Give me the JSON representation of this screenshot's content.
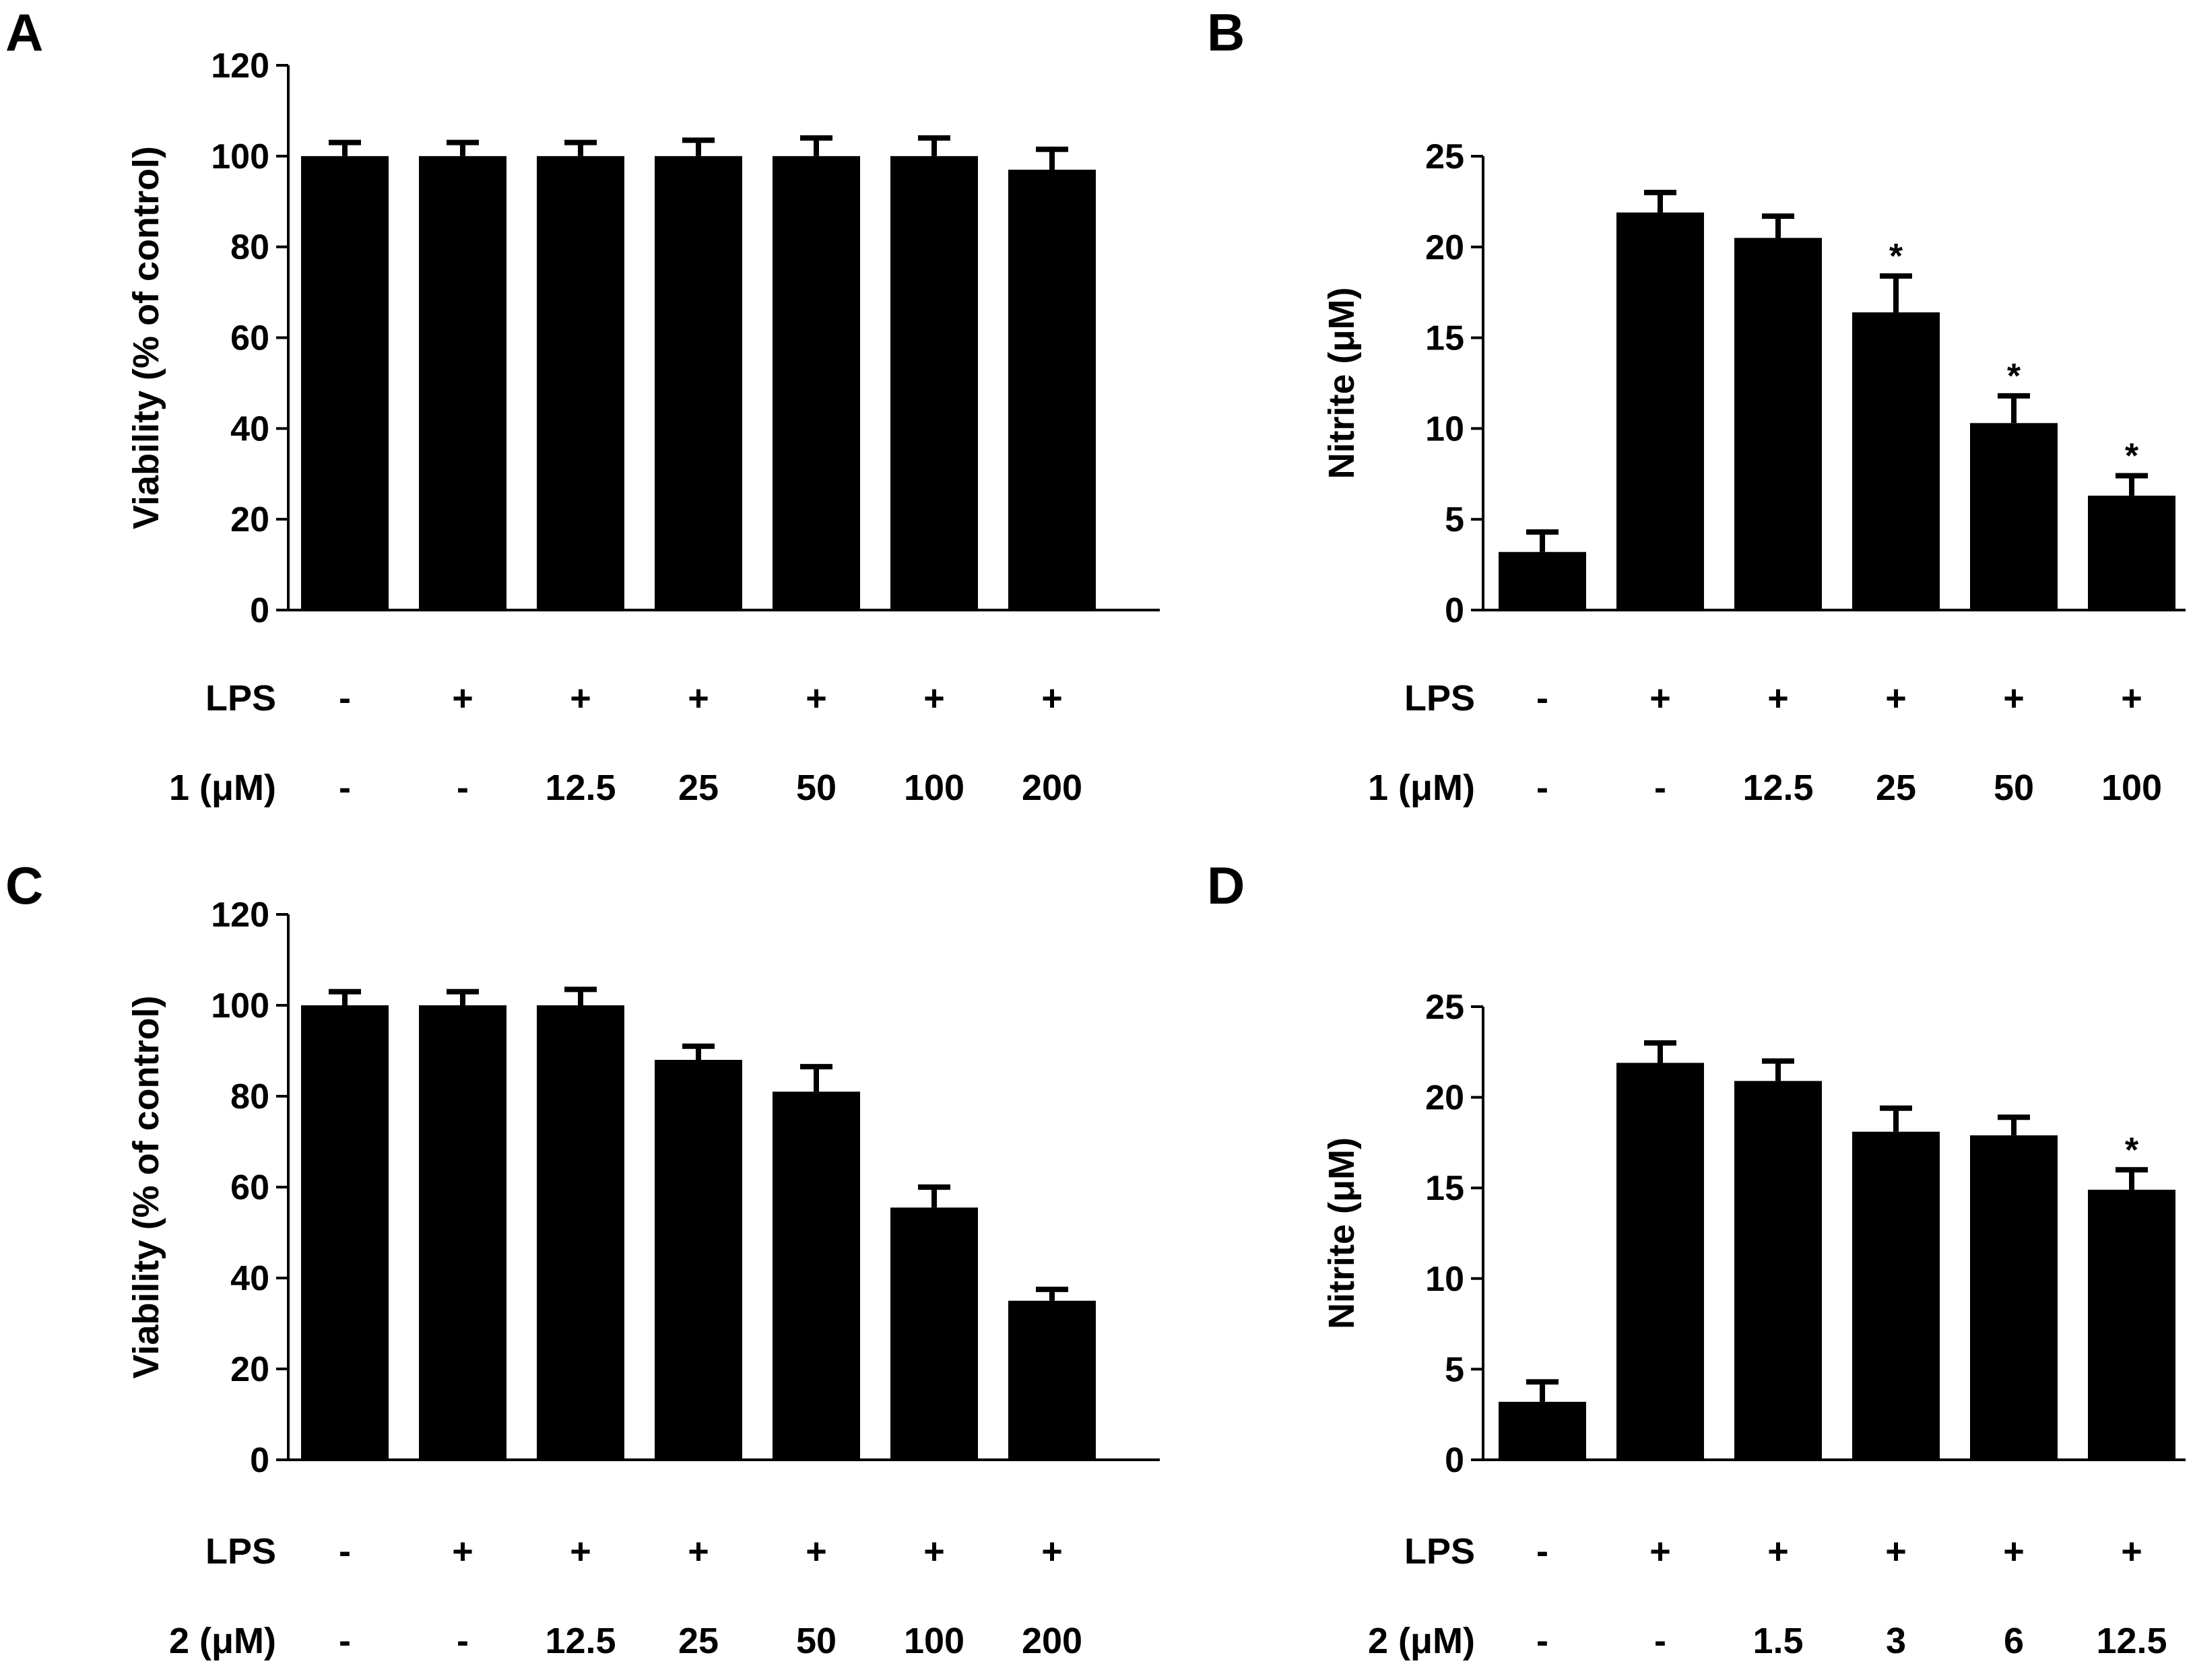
{
  "chart_data": [
    {
      "panel": "A",
      "type": "bar",
      "ylabel": "Viability (% of control)",
      "ylim": [
        0,
        120
      ],
      "yticks": [
        0,
        20,
        40,
        60,
        80,
        100,
        120
      ],
      "condition_rows": [
        {
          "label": "LPS",
          "values": [
            "-",
            "+",
            "+",
            "+",
            "+",
            "+",
            "+"
          ]
        },
        {
          "label": "1 (μM)",
          "values": [
            "-",
            "-",
            "12.5",
            "25",
            "50",
            "100",
            "200"
          ]
        }
      ],
      "values": [
        100,
        100,
        100,
        100,
        100,
        100,
        97
      ],
      "errors": [
        3,
        3,
        3,
        3.5,
        4,
        4,
        4.5
      ],
      "annotations": [
        "",
        "",
        "",
        "",
        "",
        "",
        ""
      ]
    },
    {
      "panel": "B",
      "type": "bar",
      "ylabel": "Nitrite (μM)",
      "ylim": [
        0,
        25
      ],
      "yticks": [
        0,
        5,
        10,
        15,
        20,
        25
      ],
      "condition_rows": [
        {
          "label": "LPS",
          "values": [
            "-",
            "+",
            "+",
            "+",
            "+",
            "+"
          ]
        },
        {
          "label": "1 (μM)",
          "values": [
            "-",
            "-",
            "12.5",
            "25",
            "50",
            "100"
          ]
        }
      ],
      "values": [
        3.2,
        21.9,
        20.5,
        16.4,
        10.3,
        6.3
      ],
      "errors": [
        1.1,
        1.1,
        1.2,
        2.0,
        1.5,
        1.1
      ],
      "annotations": [
        "",
        "",
        "",
        "*",
        "*",
        "*"
      ]
    },
    {
      "panel": "C",
      "type": "bar",
      "ylabel": "Viability (% of control)",
      "ylim": [
        0,
        120
      ],
      "yticks": [
        0,
        20,
        40,
        60,
        80,
        100,
        120
      ],
      "condition_rows": [
        {
          "label": "LPS",
          "values": [
            "-",
            "+",
            "+",
            "+",
            "+",
            "+",
            "+"
          ]
        },
        {
          "label": "2 (μM)",
          "values": [
            "-",
            "-",
            "12.5",
            "25",
            "50",
            "100",
            "200"
          ]
        }
      ],
      "values": [
        100,
        100,
        100,
        88,
        81,
        55.5,
        35
      ],
      "errors": [
        3,
        3,
        3.5,
        3,
        5.5,
        4.5,
        2.5
      ],
      "annotations": [
        "",
        "",
        "",
        "",
        "",
        "",
        ""
      ]
    },
    {
      "panel": "D",
      "type": "bar",
      "ylabel": "Nitrite (μM)",
      "ylim": [
        0,
        25
      ],
      "yticks": [
        0,
        5,
        10,
        15,
        20,
        25
      ],
      "condition_rows": [
        {
          "label": "LPS",
          "values": [
            "-",
            "+",
            "+",
            "+",
            "+",
            "+"
          ]
        },
        {
          "label": "2 (μM)",
          "values": [
            "-",
            "-",
            "1.5",
            "3",
            "6",
            "12.5"
          ]
        }
      ],
      "values": [
        3.2,
        21.9,
        20.9,
        18.1,
        17.9,
        14.9
      ],
      "errors": [
        1.1,
        1.1,
        1.1,
        1.3,
        1.0,
        1.1
      ],
      "annotations": [
        "",
        "",
        "",
        "",
        "",
        "*"
      ]
    }
  ]
}
